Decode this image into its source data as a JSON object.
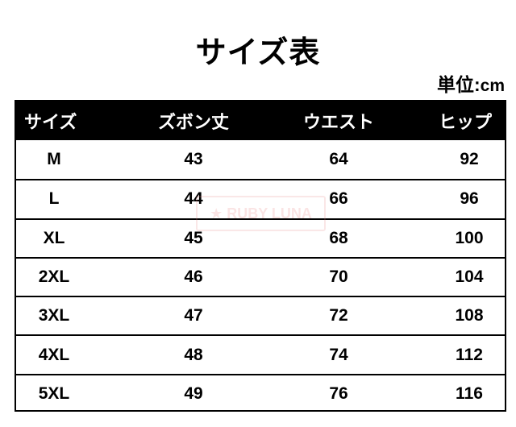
{
  "title": "サイズ表",
  "unit": {
    "label": "単位:",
    "value": "cm"
  },
  "table": {
    "headers": [
      "サイズ",
      "ズボン丈",
      "ウエスト",
      "ヒップ"
    ],
    "rows": [
      [
        "M",
        "43",
        "64",
        "92"
      ],
      [
        "L",
        "44",
        "66",
        "96"
      ],
      [
        "XL",
        "45",
        "68",
        "100"
      ],
      [
        "2XL",
        "46",
        "70",
        "104"
      ],
      [
        "3XL",
        "47",
        "72",
        "108"
      ],
      [
        "4XL",
        "48",
        "74",
        "112"
      ],
      [
        "5XL",
        "49",
        "76",
        "116"
      ]
    ]
  },
  "watermark": "★ RUBY LUNA"
}
